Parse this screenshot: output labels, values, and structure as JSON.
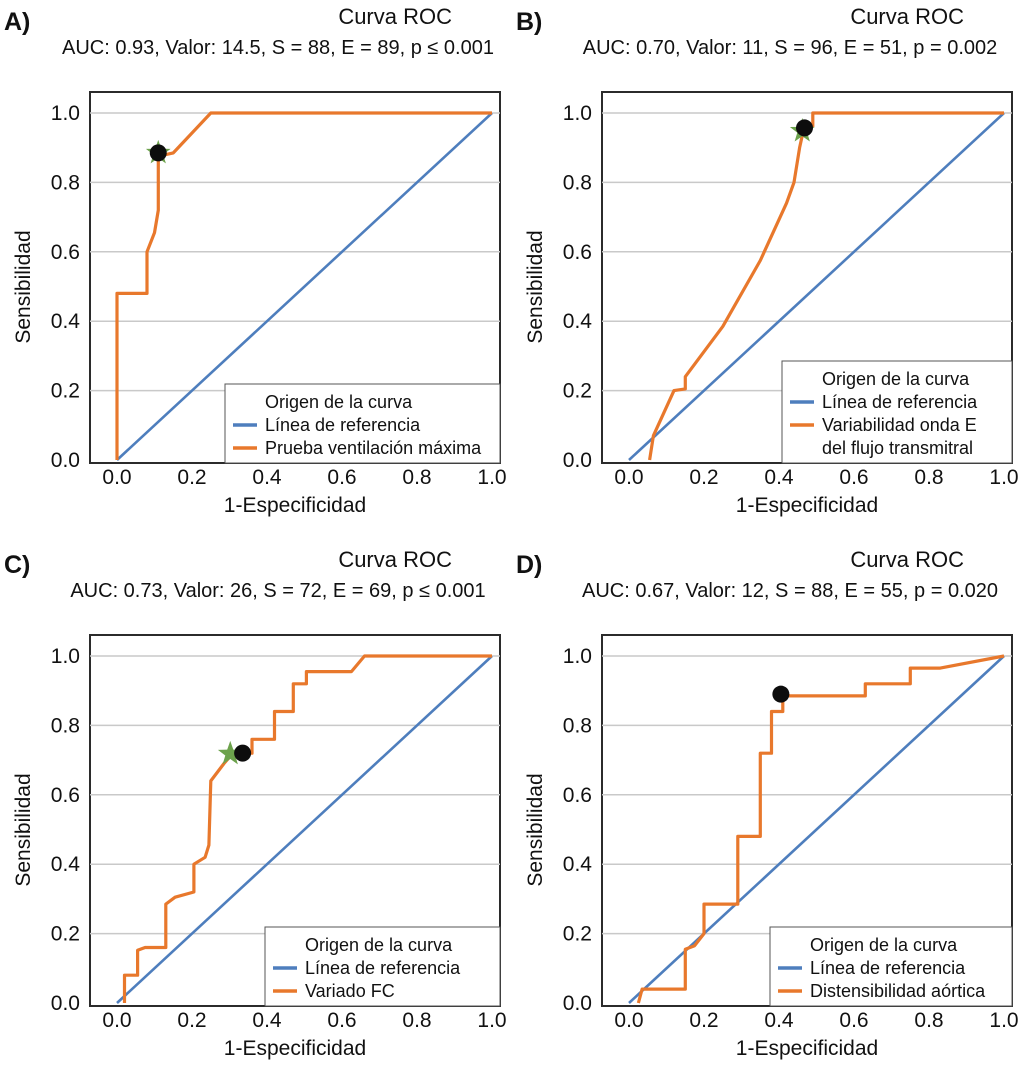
{
  "figure": {
    "colors": {
      "reference_line": "#4E7EBD",
      "roc_curve": "#E8782C",
      "marker": "#0d0d0d",
      "star": "#6CA24C",
      "grid": "#c9c9c9",
      "frame": "#2b2b2b",
      "panel_label": "#2E2B6B",
      "text": "#111111",
      "plot_background": "#ffffff"
    },
    "axis": {
      "tick_labels": [
        "0.0",
        "0.2",
        "0.4",
        "0.6",
        "0.8",
        "1.0"
      ]
    }
  },
  "chart_data": [
    {
      "panel": "A",
      "label": "A)",
      "type": "line",
      "title": "Curva ROC",
      "subtitle": "AUC: 0.93, Valor: 14.5, S = 88, E = 89, p ≤ 0.001",
      "xlabel": "1-Especificidad",
      "ylabel": "Sensibilidad",
      "xlim": [
        0,
        1
      ],
      "ylim": [
        0,
        1
      ],
      "x_ticks": [
        0.0,
        0.2,
        0.4,
        0.6,
        0.8,
        1.0
      ],
      "y_ticks": [
        0.0,
        0.2,
        0.4,
        0.6,
        0.8,
        1.0
      ],
      "grid": "horizontal",
      "legend": {
        "title": "Origen de la curva",
        "position": "lower right",
        "items": [
          {
            "role": "reference",
            "lines": [
              "Línea de referencia"
            ]
          },
          {
            "role": "test",
            "lines": [
              "Prueba ventilación máxima"
            ]
          }
        ]
      },
      "series": [
        {
          "name": "Línea de referencia",
          "role": "reference",
          "points": [
            [
              0,
              0
            ],
            [
              1,
              1
            ]
          ]
        },
        {
          "name": "Prueba ventilación máxima",
          "role": "test",
          "points": [
            [
              0,
              0
            ],
            [
              0,
              0.48
            ],
            [
              0.08,
              0.48
            ],
            [
              0.08,
              0.6
            ],
            [
              0.1,
              0.655
            ],
            [
              0.11,
              0.72
            ],
            [
              0.11,
              0.875
            ],
            [
              0.13,
              0.88
            ],
            [
              0.15,
              0.885
            ],
            [
              0.25,
              1.0
            ],
            [
              1,
              1
            ]
          ]
        }
      ],
      "optimal_point": {
        "x": 0.11,
        "y": 0.885
      },
      "star_point": {
        "x": 0.11,
        "y": 0.885
      }
    },
    {
      "panel": "B",
      "label": "B)",
      "type": "line",
      "title": "Curva ROC",
      "subtitle": "AUC: 0.70, Valor: 11, S = 96, E = 51, p = 0.002",
      "xlabel": "1-Especificidad",
      "ylabel": "Sensibilidad",
      "xlim": [
        0,
        1
      ],
      "ylim": [
        0,
        1
      ],
      "x_ticks": [
        0.0,
        0.2,
        0.4,
        0.6,
        0.8,
        1.0
      ],
      "y_ticks": [
        0.0,
        0.2,
        0.4,
        0.6,
        0.8,
        1.0
      ],
      "grid": "horizontal",
      "legend": {
        "title": "Origen de la curva",
        "position": "lower right",
        "items": [
          {
            "role": "reference",
            "lines": [
              "Línea de referencia"
            ]
          },
          {
            "role": "test",
            "lines": [
              "Variabilidad onda E",
              "del flujo transmitral"
            ]
          }
        ]
      },
      "series": [
        {
          "name": "Línea de referencia",
          "role": "reference",
          "points": [
            [
              0,
              0
            ],
            [
              1,
              1
            ]
          ]
        },
        {
          "name": "Variabilidad onda E del flujo transmitral",
          "role": "test",
          "points": [
            [
              0.055,
              0
            ],
            [
              0.065,
              0.07
            ],
            [
              0.12,
              0.2
            ],
            [
              0.15,
              0.205
            ],
            [
              0.15,
              0.24
            ],
            [
              0.25,
              0.385
            ],
            [
              0.35,
              0.575
            ],
            [
              0.42,
              0.74
            ],
            [
              0.44,
              0.8
            ],
            [
              0.455,
              0.9
            ],
            [
              0.465,
              0.95
            ],
            [
              0.475,
              0.962
            ],
            [
              0.49,
              0.962
            ],
            [
              0.49,
              1.0
            ],
            [
              1,
              1
            ]
          ]
        }
      ],
      "optimal_point": {
        "x": 0.468,
        "y": 0.957
      },
      "star_point": {
        "x": 0.462,
        "y": 0.948
      }
    },
    {
      "panel": "C",
      "label": "C)",
      "type": "line",
      "title": "Curva ROC",
      "subtitle": "AUC: 0.73, Valor: 26, S = 72, E = 69, p ≤ 0.001",
      "xlabel": "1-Especificidad",
      "ylabel": "Sensibilidad",
      "xlim": [
        0,
        1
      ],
      "ylim": [
        0,
        1
      ],
      "x_ticks": [
        0.0,
        0.2,
        0.4,
        0.6,
        0.8,
        1.0
      ],
      "y_ticks": [
        0.0,
        0.2,
        0.4,
        0.6,
        0.8,
        1.0
      ],
      "grid": "horizontal",
      "legend": {
        "title": "Origen de la curva",
        "position": "lower right",
        "items": [
          {
            "role": "reference",
            "lines": [
              "Línea de referencia"
            ]
          },
          {
            "role": "test",
            "lines": [
              "Variado FC"
            ]
          }
        ]
      },
      "series": [
        {
          "name": "Línea de referencia",
          "role": "reference",
          "points": [
            [
              0,
              0
            ],
            [
              1,
              1
            ]
          ]
        },
        {
          "name": "Variado FC",
          "role": "test",
          "points": [
            [
              0.02,
              0
            ],
            [
              0.02,
              0.08
            ],
            [
              0.055,
              0.08
            ],
            [
              0.055,
              0.152
            ],
            [
              0.075,
              0.16
            ],
            [
              0.13,
              0.16
            ],
            [
              0.13,
              0.285
            ],
            [
              0.155,
              0.305
            ],
            [
              0.205,
              0.32
            ],
            [
              0.205,
              0.4
            ],
            [
              0.235,
              0.42
            ],
            [
              0.245,
              0.455
            ],
            [
              0.25,
              0.64
            ],
            [
              0.285,
              0.69
            ],
            [
              0.305,
              0.715
            ],
            [
              0.335,
              0.72
            ],
            [
              0.36,
              0.72
            ],
            [
              0.36,
              0.76
            ],
            [
              0.42,
              0.76
            ],
            [
              0.42,
              0.84
            ],
            [
              0.47,
              0.84
            ],
            [
              0.47,
              0.92
            ],
            [
              0.505,
              0.92
            ],
            [
              0.505,
              0.955
            ],
            [
              0.625,
              0.955
            ],
            [
              0.66,
              1.0
            ],
            [
              1,
              1
            ]
          ]
        }
      ],
      "optimal_point": {
        "x": 0.335,
        "y": 0.72
      },
      "star_point": {
        "x": 0.302,
        "y": 0.718
      }
    },
    {
      "panel": "D",
      "label": "D)",
      "type": "line",
      "title": "Curva ROC",
      "subtitle": "AUC: 0.67, Valor: 12, S = 88, E = 55, p = 0.020",
      "xlabel": "1-Especificidad",
      "ylabel": "Sensibilidad",
      "xlim": [
        0,
        1
      ],
      "ylim": [
        0,
        1
      ],
      "x_ticks": [
        0.0,
        0.2,
        0.4,
        0.6,
        0.8,
        1.0
      ],
      "y_ticks": [
        0.0,
        0.2,
        0.4,
        0.6,
        0.8,
        1.0
      ],
      "grid": "horizontal",
      "legend": {
        "title": "Origen de la curva",
        "position": "lower right",
        "items": [
          {
            "role": "reference",
            "lines": [
              "Línea de referencia"
            ]
          },
          {
            "role": "test",
            "lines": [
              "Distensibilidad aórtica"
            ]
          }
        ]
      },
      "series": [
        {
          "name": "Línea de referencia",
          "role": "reference",
          "points": [
            [
              0,
              0
            ],
            [
              1,
              1
            ]
          ]
        },
        {
          "name": "Distensibilidad aórtica",
          "role": "test",
          "points": [
            [
              0.025,
              0
            ],
            [
              0.035,
              0.04
            ],
            [
              0.15,
              0.04
            ],
            [
              0.15,
              0.155
            ],
            [
              0.175,
              0.165
            ],
            [
              0.2,
              0.2
            ],
            [
              0.2,
              0.285
            ],
            [
              0.29,
              0.285
            ],
            [
              0.29,
              0.48
            ],
            [
              0.35,
              0.48
            ],
            [
              0.35,
              0.72
            ],
            [
              0.38,
              0.72
            ],
            [
              0.38,
              0.84
            ],
            [
              0.41,
              0.84
            ],
            [
              0.41,
              0.885
            ],
            [
              0.63,
              0.885
            ],
            [
              0.63,
              0.92
            ],
            [
              0.75,
              0.92
            ],
            [
              0.75,
              0.965
            ],
            [
              0.83,
              0.965
            ],
            [
              1,
              1
            ]
          ]
        }
      ],
      "optimal_point": {
        "x": 0.405,
        "y": 0.89
      },
      "star_point": null
    }
  ]
}
